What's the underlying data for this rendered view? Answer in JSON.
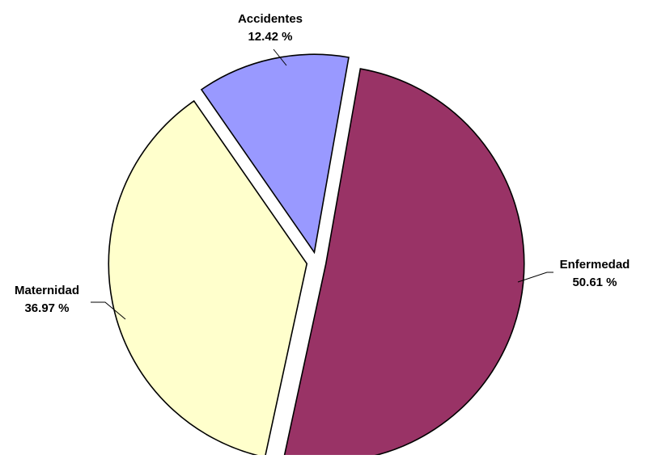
{
  "chart_data": {
    "type": "pie",
    "title": "",
    "slices": [
      {
        "name": "Enfermedad",
        "value": 50.61,
        "label": "50.61 %",
        "color": "#993366"
      },
      {
        "name": "Maternidad",
        "value": 36.97,
        "label": "36.97 %",
        "color": "#FFFFCC"
      },
      {
        "name": "Accidentes",
        "value": 12.42,
        "label": "12.42 %",
        "color": "#9999FF"
      }
    ],
    "exploded": true,
    "legend": "none"
  }
}
